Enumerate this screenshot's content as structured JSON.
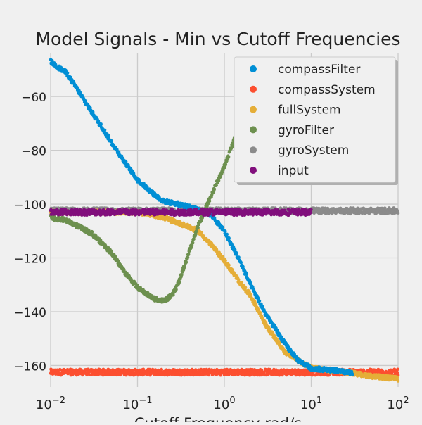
{
  "chart_data": {
    "type": "scatter",
    "title": "Model Signals - Min vs Cutoff Frequencies",
    "xlabel": "Cutoff Frequency rad/s",
    "ylabel": "",
    "xscale": "log",
    "xlim": [
      0.01,
      100
    ],
    "ylim": [
      -168,
      -44
    ],
    "x_ticks": [
      0.01,
      0.1,
      1,
      10,
      100
    ],
    "x_tick_bases": [
      "10",
      "10",
      "10",
      "10",
      "10"
    ],
    "x_tick_exponents": [
      "−2",
      "−1",
      "0",
      "1",
      "2"
    ],
    "y_ticks": [
      -160,
      -140,
      -120,
      -100,
      -80,
      -60
    ],
    "y_tick_labels": [
      "−160",
      "−140",
      "−120",
      "−100",
      "−80",
      "−60"
    ],
    "grid": true,
    "legend_position": "top-right",
    "series": [
      {
        "name": "compassFilter",
        "color": "#008fd5",
        "x": [
          0.01,
          0.012,
          0.015,
          0.02,
          0.03,
          0.04,
          0.05,
          0.07,
          0.1,
          0.15,
          0.2,
          0.3,
          0.5,
          0.7,
          1.0,
          1.5,
          2.0,
          3.0,
          5.0,
          7.0,
          10.0,
          20.0,
          30.0
        ],
        "y": [
          -47,
          -49,
          -51,
          -57,
          -66,
          -72,
          -77,
          -84,
          -91,
          -96,
          -99,
          -100,
          -102,
          -104,
          -110,
          -121,
          -130,
          -141,
          -152,
          -158,
          -161,
          -162,
          -163
        ]
      },
      {
        "name": "compassSystem",
        "color": "#fc4f30",
        "x": [
          0.01,
          0.02,
          0.05,
          0.1,
          0.2,
          0.5,
          1.0,
          2.0,
          5.0,
          10.0,
          20.0,
          50.0,
          100.0
        ],
        "y": [
          -162.5,
          -162.5,
          -162.5,
          -162.5,
          -162.5,
          -162.5,
          -162.5,
          -162.5,
          -162.5,
          -162.5,
          -162.5,
          -162.5,
          -162.5
        ]
      },
      {
        "name": "fullSystem",
        "color": "#e5ae38",
        "x": [
          0.01,
          0.03,
          0.05,
          0.1,
          0.15,
          0.2,
          0.3,
          0.5,
          0.7,
          1.0,
          1.5,
          2.0,
          3.0,
          5.0,
          7.0,
          10.0,
          20.0,
          50.0,
          100.0
        ],
        "y": [
          -103,
          -103,
          -103,
          -103,
          -104,
          -105,
          -107,
          -110,
          -115,
          -121,
          -129,
          -134,
          -145,
          -155,
          -158,
          -161,
          -162,
          -164,
          -165
        ]
      },
      {
        "name": "gyroFilter",
        "color": "#6d904f",
        "x": [
          0.01,
          0.015,
          0.02,
          0.03,
          0.05,
          0.07,
          0.1,
          0.15,
          0.2,
          0.25,
          0.3,
          0.4,
          0.5,
          0.7,
          1.0,
          1.3,
          1.6,
          2.0
        ],
        "y": [
          -105,
          -106,
          -108,
          -111,
          -118,
          -125,
          -131,
          -135,
          -136,
          -134,
          -129,
          -117,
          -108,
          -97,
          -86,
          -76,
          -68,
          -60
        ]
      },
      {
        "name": "gyroSystem",
        "color": "#8b8b8b",
        "x": [
          0.01,
          0.02,
          0.05,
          0.1,
          0.2,
          0.5,
          1.0,
          2.0,
          5.0,
          10.0,
          20.0,
          50.0,
          100.0
        ],
        "y": [
          -102.5,
          -102.5,
          -102.5,
          -102.5,
          -102.5,
          -102.5,
          -102.5,
          -102.5,
          -102.5,
          -102.5,
          -102.5,
          -102.5,
          -102.5
        ]
      },
      {
        "name": "input",
        "color": "#810f7c",
        "x": [
          0.01,
          0.02,
          0.05,
          0.1,
          0.2,
          0.5,
          1.0,
          2.0,
          5.0,
          10.0
        ],
        "y": [
          -103,
          -103,
          -103,
          -103,
          -103,
          -103,
          -103,
          -103,
          -103,
          -103
        ]
      }
    ]
  }
}
